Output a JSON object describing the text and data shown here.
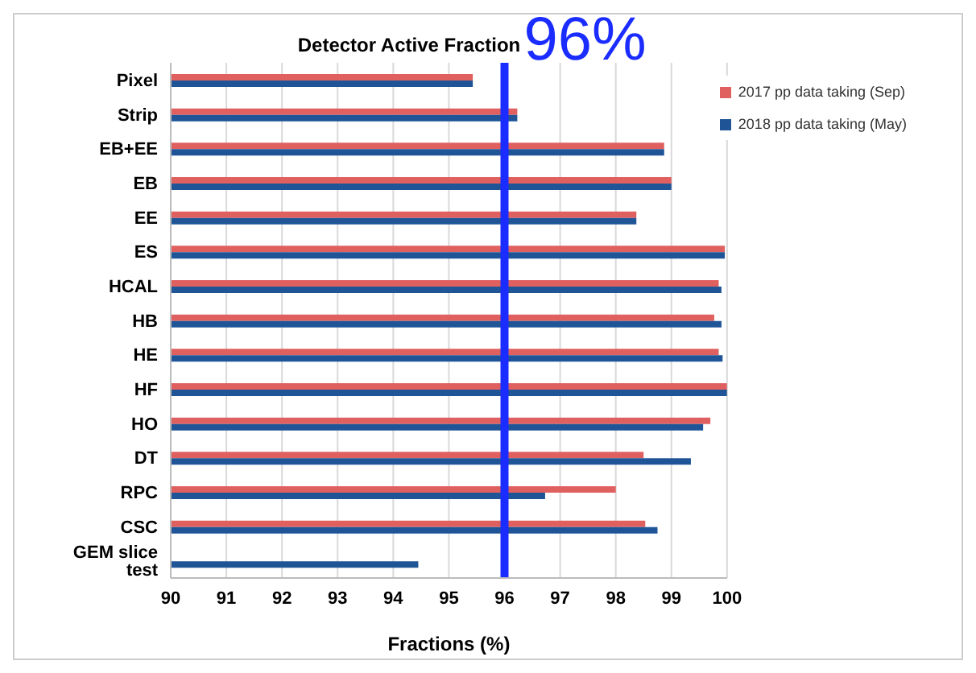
{
  "chart_data": {
    "type": "bar",
    "orientation": "horizontal",
    "title": "Detector Active Fraction",
    "xlabel": "Fractions (%)",
    "categories": [
      "Pixel",
      "Strip",
      "EB+EE",
      "EB",
      "EE",
      "ES",
      "HCAL",
      "HB",
      "HE",
      "HF",
      "HO",
      "DT",
      "RPC",
      "CSC",
      "GEM slice test"
    ],
    "series": [
      {
        "name": "2017 pp data taking (Sep)",
        "color": "#e06060",
        "values": [
          95.43,
          96.23,
          98.87,
          99.0,
          98.37,
          99.96,
          99.85,
          99.77,
          99.85,
          100,
          99.7,
          98.5,
          98.0,
          98.53,
          null
        ]
      },
      {
        "name": "2018 pp data taking (May)",
        "color": "#1f5597",
        "values": [
          95.43,
          96.23,
          98.87,
          99.0,
          98.37,
          99.96,
          99.9,
          99.9,
          99.92,
          100,
          99.57,
          99.35,
          96.73,
          98.75,
          94.45
        ]
      }
    ],
    "xlim": [
      90,
      100
    ],
    "xticks": [
      90,
      91,
      92,
      93,
      94,
      95,
      96,
      97,
      98,
      99,
      100
    ],
    "ref_lines": [
      {
        "axis": "x",
        "value": 96,
        "label": "96%",
        "color": "#1a2cff"
      }
    ],
    "grid": "x",
    "legend": "top right"
  }
}
